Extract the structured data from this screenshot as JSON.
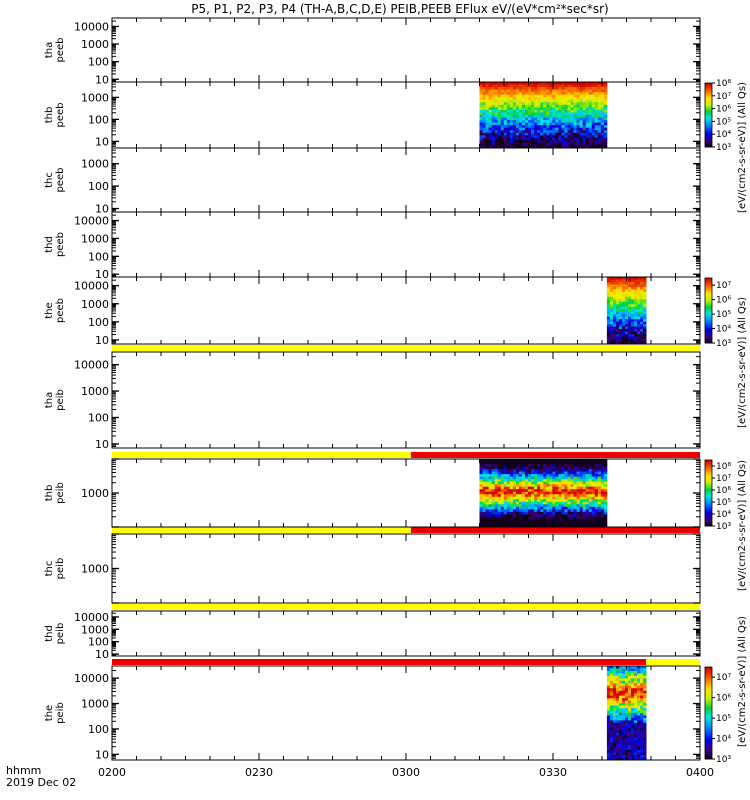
{
  "chart_data": {
    "type": "heatmap",
    "title": "P5, P1, P2, P3, P4 (TH-A,B,C,D,E) PEIB,PEEB EFlux eV/(eV*cm²*sec*sr)",
    "xlabel": "hhmm",
    "date_label": "2019 Dec 02",
    "x_tick_labels": [
      "0200",
      "0230",
      "0300",
      "0330",
      "0400"
    ],
    "x_range_minutes": [
      0,
      120
    ],
    "colorbar_label": "[eV/(cm2-s-sr-eV)] (All Qs)",
    "panels": [
      {
        "id": "tha_peeb",
        "label": [
          "tha",
          "peeb"
        ],
        "yscale": "log",
        "ylim": [
          7,
          30000
        ],
        "ytick_labels": [
          "10",
          "100",
          "1000",
          "10000"
        ],
        "ytick_values": [
          10,
          100,
          1000,
          10000
        ],
        "status_bar": null,
        "data": null,
        "colorbar": null
      },
      {
        "id": "thb_peeb",
        "label": [
          "thb",
          "peeb"
        ],
        "yscale": "log",
        "ylim": [
          5,
          5000
        ],
        "ytick_labels": [
          "10",
          "100",
          "1000"
        ],
        "ytick_values": [
          10,
          100,
          1000
        ],
        "status_bar": null,
        "data": {
          "t_start": 75,
          "t_end": 101,
          "pattern": "high_flux_low_energy",
          "energy_range": [
            5,
            5000
          ]
        },
        "colorbar": {
          "ticks": [
            "10³",
            "10⁴",
            "10⁵",
            "10⁶",
            "10⁷",
            "10⁸"
          ],
          "log_min": 3,
          "log_max": 8
        }
      },
      {
        "id": "thc_peeb",
        "label": [
          "thc",
          "peeb"
        ],
        "yscale": "log",
        "ylim": [
          7,
          5000
        ],
        "ytick_labels": [
          "10",
          "100",
          "1000"
        ],
        "ytick_values": [
          10,
          100,
          1000
        ],
        "status_bar": null,
        "data": null,
        "colorbar": null
      },
      {
        "id": "thd_peeb",
        "label": [
          "thd",
          "peeb"
        ],
        "yscale": "log",
        "ylim": [
          7,
          30000
        ],
        "ytick_labels": [
          "10",
          "100",
          "1000",
          "10000"
        ],
        "ytick_values": [
          10,
          100,
          1000,
          10000
        ],
        "status_bar": null,
        "data": null,
        "colorbar": null
      },
      {
        "id": "the_peeb",
        "label": [
          "the",
          "peeb"
        ],
        "yscale": "log",
        "ylim": [
          6,
          30000
        ],
        "ytick_labels": [
          "10",
          "100",
          "1000",
          "10000"
        ],
        "ytick_values": [
          10,
          100,
          1000,
          10000
        ],
        "status_bar": null,
        "data": {
          "t_start": 101,
          "t_end": 109,
          "pattern": "high_flux_low_energy",
          "energy_range": [
            6,
            30000
          ]
        },
        "colorbar": {
          "ticks": [
            "10³",
            "10⁴",
            "10⁵",
            "10⁶",
            "10⁷"
          ],
          "log_min": 3,
          "log_max": 7.5
        }
      },
      {
        "id": "tha_peib",
        "label": [
          "tha",
          "peib"
        ],
        "yscale": "log",
        "ylim": [
          7,
          30000
        ],
        "ytick_labels": [
          "10",
          "100",
          "1000",
          "10000"
        ],
        "ytick_values": [
          10,
          100,
          1000,
          10000
        ],
        "status_bar": [
          {
            "t_start": 0,
            "t_end": 120,
            "color": "#ffff00"
          }
        ],
        "data": null,
        "colorbar": null
      },
      {
        "id": "thb_peib",
        "label": [
          "thb",
          "peib"
        ],
        "yscale": "log",
        "ylim": [
          100,
          10000
        ],
        "ytick_labels": [
          "1000"
        ],
        "ytick_values": [
          1000
        ],
        "status_bar": [
          {
            "t_start": 0,
            "t_end": 61,
            "color": "#ffff00"
          },
          {
            "t_start": 61,
            "t_end": 120,
            "color": "#ee0000"
          }
        ],
        "data": {
          "t_start": 75,
          "t_end": 101,
          "pattern": "band_center",
          "energy_range": [
            100,
            10000
          ]
        },
        "colorbar": {
          "ticks": [
            "10³",
            "10⁴",
            "10⁵",
            "10⁶",
            "10⁷",
            "10⁸"
          ],
          "log_min": 3,
          "log_max": 8.5
        }
      },
      {
        "id": "thc_peib",
        "label": [
          "thc",
          "peib"
        ],
        "yscale": "log",
        "ylim": [
          100,
          10000
        ],
        "ytick_labels": [
          "1000"
        ],
        "ytick_values": [
          1000
        ],
        "status_bar": [
          {
            "t_start": 0,
            "t_end": 61,
            "color": "#ffff00"
          },
          {
            "t_start": 61,
            "t_end": 120,
            "color": "#ee0000"
          }
        ],
        "data": null,
        "colorbar": null
      },
      {
        "id": "thd_peib",
        "label": [
          "thd",
          "peib"
        ],
        "yscale": "log",
        "ylim": [
          7,
          30000
        ],
        "ytick_labels": [
          "10",
          "100",
          "1000",
          "10000"
        ],
        "ytick_values": [
          10,
          100,
          1000,
          10000
        ],
        "status_bar": [
          {
            "t_start": 0,
            "t_end": 120,
            "color": "#ffff00"
          }
        ],
        "data": null,
        "colorbar": null
      },
      {
        "id": "the_peib",
        "label": [
          "the",
          "peib"
        ],
        "yscale": "log",
        "ylim": [
          6,
          30000
        ],
        "ytick_labels": [
          "10",
          "100",
          "1000",
          "10000"
        ],
        "ytick_values": [
          10,
          100,
          1000,
          10000
        ],
        "status_bar": [
          {
            "t_start": 0,
            "t_end": 109,
            "color": "#ee0000"
          },
          {
            "t_start": 109,
            "t_end": 120,
            "color": "#ffff00"
          }
        ],
        "data": {
          "t_start": 101,
          "t_end": 109,
          "pattern": "band_mid",
          "energy_range": [
            6,
            30000
          ]
        },
        "colorbar": {
          "ticks": [
            "10³",
            "10⁴",
            "10⁵",
            "10⁶",
            "10⁷"
          ],
          "log_min": 3,
          "log_max": 7.5
        }
      }
    ]
  }
}
